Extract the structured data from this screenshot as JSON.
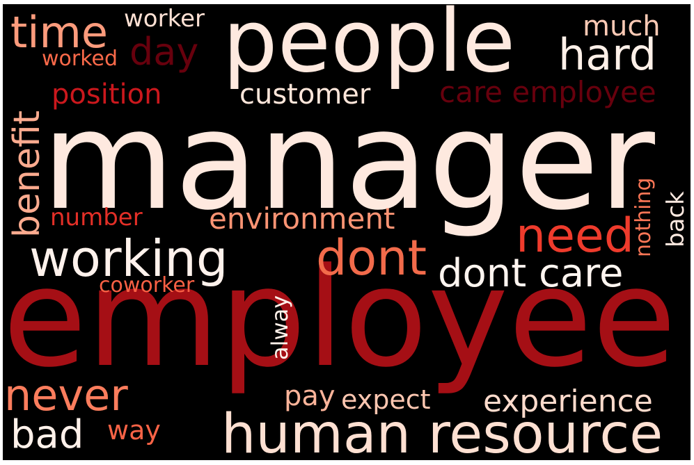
{
  "words": [
    {
      "text": "manager",
      "color": "#fee9df"
    },
    {
      "text": "employee",
      "color": "#a50f15"
    },
    {
      "text": "people",
      "color": "#fee9df"
    },
    {
      "text": "human resource",
      "color": "#fee0d2"
    },
    {
      "text": "working",
      "color": "#fff2ec"
    },
    {
      "text": "dont",
      "color": "#f26b4b"
    },
    {
      "text": "need",
      "color": "#ef3b2c"
    },
    {
      "text": "dont care",
      "color": "#fff5f0"
    },
    {
      "text": "time",
      "color": "#fc9b7c"
    },
    {
      "text": "hard",
      "color": "#fff0e8"
    },
    {
      "text": "never",
      "color": "#fb7d5d"
    },
    {
      "text": "bad",
      "color": "#fff1ea"
    },
    {
      "text": "benefit",
      "color": "#fcab8f"
    },
    {
      "text": "day",
      "color": "#67000d"
    },
    {
      "text": "experience",
      "color": "#fedbcc"
    },
    {
      "text": "environment",
      "color": "#fc9474"
    },
    {
      "text": "care employee",
      "color": "#67000d"
    },
    {
      "text": "customer",
      "color": "#fee6da"
    },
    {
      "text": "position",
      "color": "#cb181d"
    },
    {
      "text": "much",
      "color": "#fdcab5"
    },
    {
      "text": "worker",
      "color": "#fee1d4"
    },
    {
      "text": "worked",
      "color": "#fb6a4a"
    },
    {
      "text": "number",
      "color": "#e32f27"
    },
    {
      "text": "coworker",
      "color": "#f96044"
    },
    {
      "text": "alway",
      "color": "#fff1ea"
    },
    {
      "text": "pay",
      "color": "#fcb49a"
    },
    {
      "text": "expect",
      "color": "#fdc6b0"
    },
    {
      "text": "way",
      "color": "#f96346"
    },
    {
      "text": "nothing",
      "color": "#fb7656"
    },
    {
      "text": "back",
      "color": "#feeae1"
    }
  ]
}
